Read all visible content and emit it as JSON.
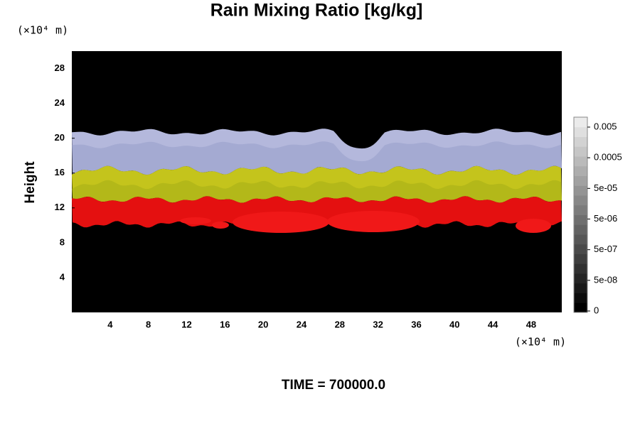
{
  "chart_data": {
    "type": "heatmap",
    "title": "Rain Mixing Ratio [kg/kg]",
    "y_label": "Height",
    "y_unit": "(×10⁴ m)",
    "x_unit": "(×10⁴ m)",
    "annotation": "TIME = 700000.0",
    "xlim": [
      0,
      51.2
    ],
    "xticks": [
      4,
      8,
      12,
      16,
      20,
      24,
      28,
      32,
      36,
      40,
      44,
      48
    ],
    "ylim": [
      0,
      30
    ],
    "yticks": [
      4,
      8,
      12,
      16,
      20,
      24,
      28
    ],
    "colorbar_ticks": [
      0,
      {
        "value": 5e-08,
        "label": "5e-08"
      },
      {
        "value": 5e-07,
        "label": "5e-07"
      },
      {
        "value": 5e-06,
        "label": "5e-06"
      },
      {
        "value": 5e-05,
        "label": "5e-05"
      },
      0.0005,
      0.005
    ]
  }
}
